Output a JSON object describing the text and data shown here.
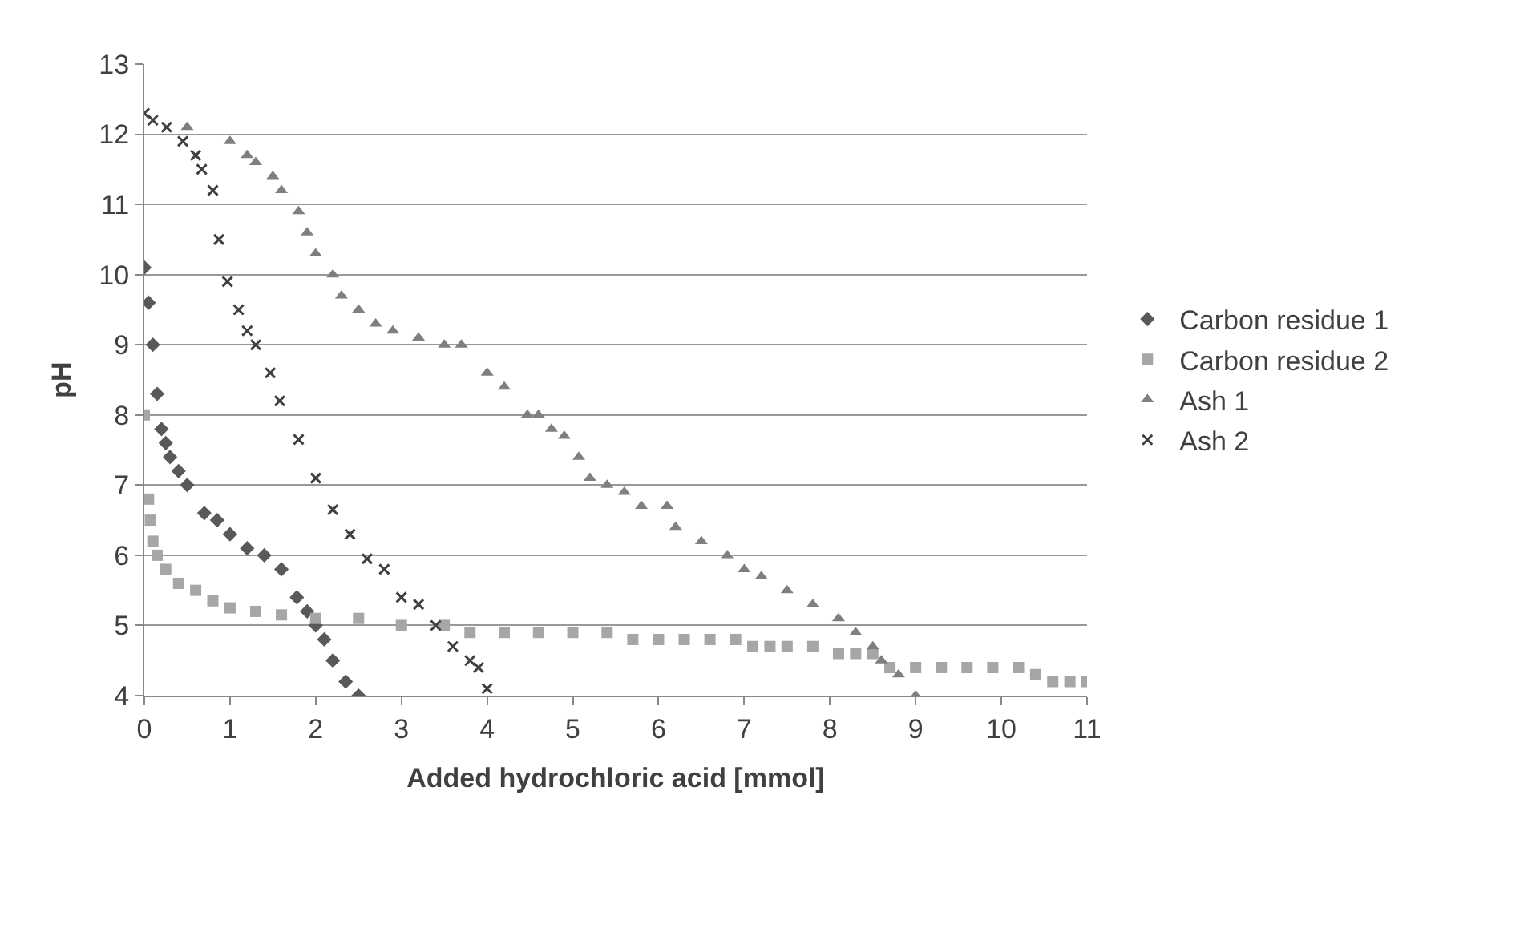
{
  "chart_data": {
    "type": "scatter",
    "xlabel": "Added hydrochloric acid [mmol]",
    "ylabel": "pH",
    "xlim": [
      0,
      11
    ],
    "xticks": [
      0,
      1,
      2,
      3,
      4,
      5,
      6,
      7,
      8,
      9,
      10,
      11
    ],
    "ylim": [
      4,
      13
    ],
    "yticks": [
      4,
      5,
      6,
      7,
      8,
      9,
      10,
      11,
      12,
      13
    ],
    "grid": "y",
    "legend": "right",
    "series": [
      {
        "name": "Carbon residue 1",
        "color": "#595959",
        "marker": "diamond",
        "x": [
          0,
          0.05,
          0.1,
          0.15,
          0.2,
          0.25,
          0.3,
          0.4,
          0.5,
          0.7,
          0.85,
          1.0,
          1.2,
          1.4,
          1.6,
          1.78,
          1.9,
          2.0,
          2.1,
          2.2,
          2.35,
          2.5
        ],
        "values": [
          10.1,
          9.6,
          9.0,
          8.3,
          7.8,
          7.6,
          7.4,
          7.2,
          7.0,
          6.6,
          6.5,
          6.3,
          6.1,
          6.0,
          5.8,
          5.4,
          5.2,
          5.0,
          4.8,
          4.5,
          4.2,
          4.0
        ]
      },
      {
        "name": "Carbon residue 2",
        "color": "#a6a6a6",
        "marker": "square",
        "x": [
          0,
          0.05,
          0.07,
          0.1,
          0.15,
          0.25,
          0.4,
          0.6,
          0.8,
          1.0,
          1.3,
          1.6,
          2.0,
          2.5,
          3.0,
          3.5,
          3.8,
          4.2,
          4.6,
          5.0,
          5.4,
          5.7,
          6.0,
          6.3,
          6.6,
          6.9,
          7.1,
          7.3,
          7.5,
          7.8,
          8.1,
          8.3,
          8.5,
          8.7,
          9.0,
          9.3,
          9.6,
          9.9,
          10.2,
          10.4,
          10.6,
          10.8,
          11.0
        ],
        "values": [
          8.0,
          6.8,
          6.5,
          6.2,
          6.0,
          5.8,
          5.6,
          5.5,
          5.35,
          5.25,
          5.2,
          5.15,
          5.1,
          5.1,
          5.0,
          5.0,
          4.9,
          4.9,
          4.9,
          4.9,
          4.9,
          4.8,
          4.8,
          4.8,
          4.8,
          4.8,
          4.7,
          4.7,
          4.7,
          4.7,
          4.6,
          4.6,
          4.6,
          4.4,
          4.4,
          4.4,
          4.4,
          4.4,
          4.4,
          4.3,
          4.2,
          4.2,
          4.2
        ]
      },
      {
        "name": "Ash 1",
        "color": "#7f7f7f",
        "marker": "triangle",
        "x": [
          0.5,
          1.0,
          1.2,
          1.3,
          1.5,
          1.6,
          1.8,
          1.9,
          2.0,
          2.2,
          2.3,
          2.5,
          2.7,
          2.9,
          3.2,
          3.5,
          3.7,
          4.0,
          4.2,
          4.47,
          4.6,
          4.75,
          4.9,
          5.07,
          5.2,
          5.4,
          5.6,
          5.8,
          6.1,
          6.2,
          6.5,
          6.8,
          7.0,
          7.2,
          7.5,
          7.8,
          8.1,
          8.3,
          8.5,
          8.6,
          8.8,
          9.0
        ],
        "values": [
          12.1,
          11.9,
          11.7,
          11.6,
          11.4,
          11.2,
          10.9,
          10.6,
          10.3,
          10.0,
          9.7,
          9.5,
          9.3,
          9.2,
          9.1,
          9.0,
          9.0,
          8.6,
          8.4,
          8.0,
          8.0,
          7.8,
          7.7,
          7.4,
          7.1,
          7.0,
          6.9,
          6.7,
          6.7,
          6.4,
          6.2,
          6.0,
          5.8,
          5.7,
          5.5,
          5.3,
          5.1,
          4.9,
          4.7,
          4.5,
          4.3,
          4.0
        ]
      },
      {
        "name": "Ash 2",
        "color": "#404040",
        "marker": "cross",
        "x": [
          0,
          0.1,
          0.26,
          0.45,
          0.6,
          0.67,
          0.8,
          0.87,
          0.97,
          1.1,
          1.2,
          1.3,
          1.47,
          1.58,
          1.8,
          2.0,
          2.2,
          2.4,
          2.6,
          2.8,
          3.0,
          3.2,
          3.4,
          3.6,
          3.8,
          3.9,
          4.0
        ],
        "values": [
          12.3,
          12.2,
          12.1,
          11.9,
          11.7,
          11.5,
          11.2,
          10.5,
          9.9,
          9.5,
          9.2,
          9.0,
          8.6,
          8.2,
          7.65,
          7.1,
          6.65,
          6.3,
          5.95,
          5.8,
          5.4,
          5.3,
          5.0,
          4.7,
          4.5,
          4.4,
          4.1
        ]
      }
    ]
  }
}
